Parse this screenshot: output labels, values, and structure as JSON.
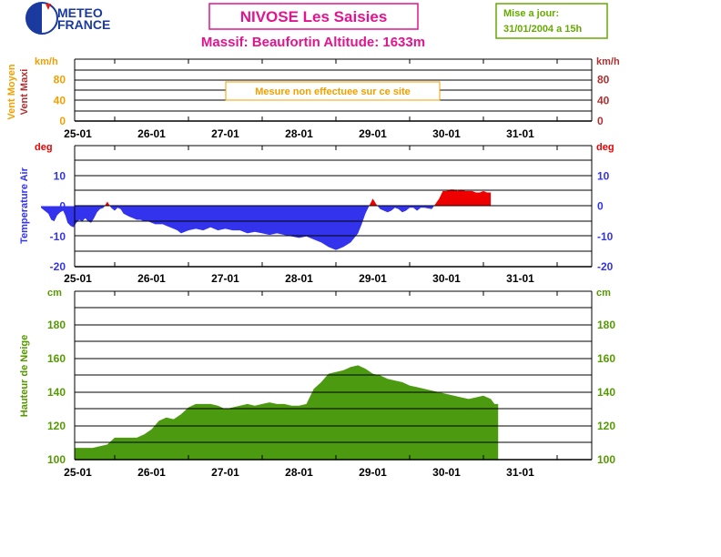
{
  "header": {
    "logo": {
      "line1": "METEO",
      "line2": "FRANCE",
      "icon": "meteo-france-logo"
    },
    "title": "NIVOSE Les Saisies",
    "subtitle": "Massif: Beaufortin Altitude: 1633m",
    "update_label": "Mise a jour:",
    "update_value": "31/01/2004 a 15h"
  },
  "colors": {
    "title": "#e0158f",
    "update": "#66aa00",
    "wind_mean": "#f0a000",
    "wind_max": "#b03030",
    "temp": "#3333ee",
    "temp_pos": "#ee0000",
    "snow": "#4c9a10",
    "snow_axis": "#559900"
  },
  "x_ticks": [
    "25-01",
    "26-01",
    "27-01",
    "28-01",
    "29-01",
    "30-01",
    "31-01"
  ],
  "chart_data": [
    {
      "type": "area",
      "id": "wind",
      "ylabel_left_1": "Vent Moyen",
      "ylabel_left_2": "Vent Maxi",
      "unit_left": "km/h",
      "unit_right": "km/h",
      "yticks": [
        0,
        40,
        80
      ],
      "ylim": [
        0,
        120
      ],
      "annotation": "Mesure non effectuee sur ce site",
      "series": []
    },
    {
      "type": "area",
      "id": "temperature",
      "ylabel": "Temperature Air",
      "unit_left": "deg",
      "unit_right": "deg",
      "yticks": [
        -20,
        -10,
        0,
        10
      ],
      "ylim": [
        -20,
        20
      ],
      "x": [
        0.0,
        0.05,
        0.1,
        0.14,
        0.18,
        0.22,
        0.26,
        0.3,
        0.33,
        0.36,
        0.4,
        0.44,
        0.48,
        0.52,
        0.56,
        0.6,
        0.64,
        0.68,
        0.72,
        0.76,
        0.8,
        0.85,
        0.9,
        0.95,
        1.0,
        1.04,
        1.08,
        1.12,
        1.16,
        1.2,
        1.25,
        1.3,
        1.35,
        1.4,
        1.45,
        1.5,
        1.55,
        1.6,
        1.65,
        1.7,
        1.75,
        1.8,
        1.85,
        1.9,
        1.95,
        2.0,
        2.1,
        2.2,
        2.3,
        2.4,
        2.5,
        2.6,
        2.7,
        2.8,
        2.9,
        3.0,
        3.1,
        3.2,
        3.3,
        3.4,
        3.5,
        3.6,
        3.7,
        3.8,
        3.9,
        4.0,
        4.1,
        4.2,
        4.3,
        4.35,
        4.4,
        4.45,
        4.5,
        4.55,
        4.6,
        4.65,
        4.7,
        4.75,
        4.8,
        4.85,
        4.9,
        4.95,
        5.0,
        5.05,
        5.1,
        5.15,
        5.2,
        5.3,
        5.4,
        5.45,
        5.5,
        5.55,
        5.6,
        5.65,
        5.7,
        5.75,
        5.8,
        5.85,
        5.9,
        5.95,
        6.0,
        6.05,
        6.1
      ],
      "values": [
        -0.5,
        -1.5,
        -2.5,
        -4.5,
        -5.0,
        -3.0,
        -2.0,
        -1.5,
        -3.0,
        -5.5,
        -6.5,
        -7.0,
        -5.5,
        -4.5,
        -5.0,
        -4.0,
        -5.0,
        -5.5,
        -4.0,
        -2.0,
        -1.0,
        -0.5,
        1.5,
        -0.5,
        -1.5,
        -0.5,
        -1.0,
        -2.5,
        -3.0,
        -3.5,
        -4.0,
        -4.5,
        -4.5,
        -5.0,
        -5.0,
        -5.5,
        -6.0,
        -6.0,
        -6.0,
        -6.5,
        -7.0,
        -7.5,
        -8.0,
        -9.0,
        -8.5,
        -8.0,
        -7.5,
        -8.0,
        -7.0,
        -8.0,
        -7.5,
        -8.0,
        -8.0,
        -9.0,
        -8.5,
        -9.0,
        -9.5,
        -9.0,
        -9.5,
        -10.0,
        -10.5,
        -10.0,
        -11.0,
        -12.0,
        -13.5,
        -14.5,
        -13.5,
        -12.0,
        -9.0,
        -6.0,
        -2.5,
        0.0,
        2.5,
        0.5,
        -1.0,
        -1.5,
        -2.0,
        -1.5,
        -0.5,
        -1.0,
        -2.0,
        -1.5,
        -0.5,
        -0.5,
        -1.5,
        -0.5,
        -0.5,
        -1.0,
        2.5,
        5.0,
        5.0,
        5.5,
        5.5,
        5.0,
        5.5,
        5.0,
        5.0,
        5.0,
        4.5,
        4.5,
        5.0,
        4.5,
        4.5
      ]
    },
    {
      "type": "area",
      "id": "snow",
      "ylabel": "Hauteur de Neige",
      "unit_left": "cm",
      "unit_right": "cm",
      "yticks": [
        100,
        120,
        140,
        160,
        180
      ],
      "ylim": [
        100,
        200
      ],
      "x": [
        0.0,
        0.1,
        0.2,
        0.3,
        0.4,
        0.5,
        0.6,
        0.7,
        0.8,
        0.9,
        1.0,
        1.1,
        1.2,
        1.3,
        1.4,
        1.5,
        1.6,
        1.7,
        1.8,
        1.9,
        2.0,
        2.1,
        2.2,
        2.3,
        2.4,
        2.5,
        2.6,
        2.7,
        2.8,
        2.9,
        3.0,
        3.1,
        3.2,
        3.3,
        3.4,
        3.5,
        3.6,
        3.7,
        3.8,
        3.9,
        4.0,
        4.1,
        4.2,
        4.3,
        4.4,
        4.5,
        4.6,
        4.7,
        4.8,
        4.9,
        5.0,
        5.1,
        5.2,
        5.3,
        5.4,
        5.5,
        5.6,
        5.7,
        5.8,
        5.9,
        6.0,
        6.1,
        6.15,
        6.2
      ],
      "values": [
        110,
        109,
        107,
        106,
        107,
        107,
        107,
        107,
        108,
        109,
        113,
        113,
        113,
        113,
        115,
        118,
        123,
        125,
        124,
        127,
        131,
        133,
        133,
        133,
        132,
        130,
        131,
        132,
        133,
        132,
        133,
        134,
        133,
        133,
        132,
        132,
        133,
        142,
        146,
        151,
        152,
        153,
        155,
        156,
        154,
        151,
        150,
        148,
        147,
        146,
        144,
        143,
        142,
        141,
        140,
        139,
        138,
        137,
        136,
        137,
        138,
        136,
        133,
        133
      ]
    }
  ]
}
